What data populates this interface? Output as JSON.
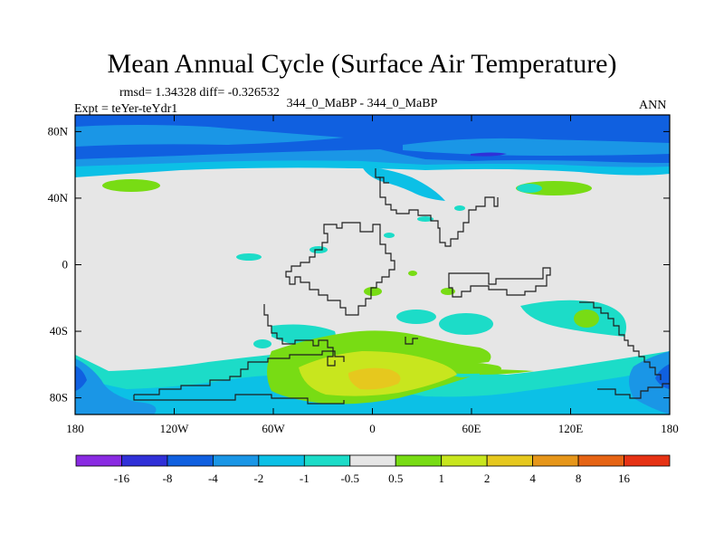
{
  "title": "Mean Annual Cycle (Surface Air Temperature)",
  "stats_line": "rmsd= 1.34328 diff= -0.326532",
  "subtitle": "344_0_MaBP - 344_0_MaBP",
  "expt_label": "Expt = teYer-teYdr1",
  "season_label": "ANN",
  "axes": {
    "lon_ticks": [
      "180",
      "120W",
      "60W",
      "0",
      "60E",
      "120E",
      "180"
    ],
    "lon_values": [
      -180,
      -120,
      -60,
      0,
      60,
      120,
      180
    ],
    "lat_ticks": [
      "80N",
      "40N",
      "0",
      "40S",
      "80S"
    ],
    "lat_values": [
      80,
      40,
      0,
      -40,
      -80
    ],
    "lon_range": [
      -180,
      180
    ],
    "lat_range": [
      -90,
      90
    ]
  },
  "colorbar": {
    "colors": [
      "#8a2be2",
      "#3030d8",
      "#1060e0",
      "#1a96e6",
      "#0cc0e6",
      "#1cdcc8",
      "#e6e6e6",
      "#78dc14",
      "#c8e61e",
      "#e6c81e",
      "#e6961a",
      "#e66414",
      "#e63214"
    ],
    "labels": [
      "-16",
      "-8",
      "-4",
      "-2",
      "-1",
      "-0.5",
      "0.5",
      "1",
      "2",
      "4",
      "8",
      "16"
    ]
  },
  "map_fields": {
    "background": "#e6e6e6",
    "coast": "#1e1e1e"
  }
}
